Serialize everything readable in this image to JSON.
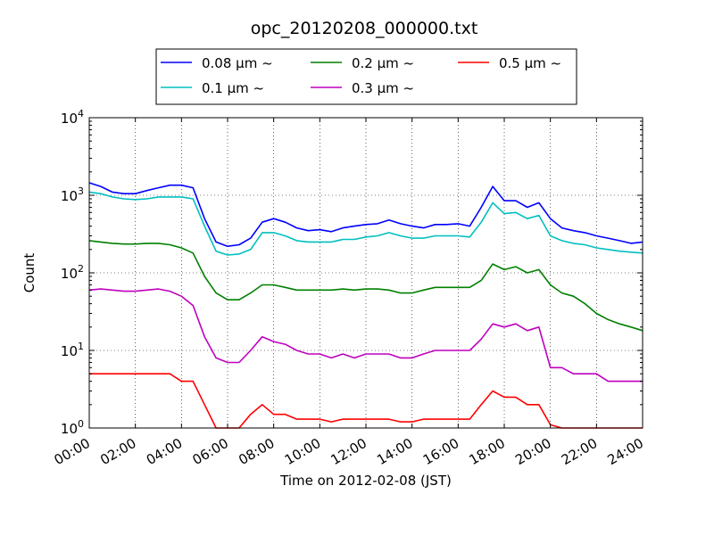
{
  "chart_data": {
    "type": "line",
    "title": "opc_20120208_000000.txt",
    "xlabel": "Time on 2012-02-08 (JST)",
    "ylabel": "Count",
    "x_range": [
      "00:00",
      "24:00"
    ],
    "x_ticks": [
      "00:00",
      "02:00",
      "04:00",
      "06:00",
      "08:00",
      "10:00",
      "12:00",
      "14:00",
      "16:00",
      "18:00",
      "20:00",
      "22:00",
      "24:00"
    ],
    "y_scale": "log",
    "y_range": [
      1,
      10000
    ],
    "y_ticks": [
      {
        "base": "10",
        "exp": "0"
      },
      {
        "base": "10",
        "exp": "1"
      },
      {
        "base": "10",
        "exp": "2"
      },
      {
        "base": "10",
        "exp": "3"
      },
      {
        "base": "10",
        "exp": "4"
      }
    ],
    "grid": true,
    "legend_position": "top-center, above plot",
    "series": [
      {
        "name": "0.08 μm ~",
        "color": "#0000ff",
        "x": [
          0,
          0.5,
          1,
          1.5,
          2,
          2.5,
          3,
          3.5,
          4,
          4.5,
          5,
          5.5,
          6,
          6.5,
          7,
          7.5,
          8,
          8.5,
          9,
          9.5,
          10,
          10.5,
          11,
          11.5,
          12,
          12.5,
          13,
          13.5,
          14,
          14.5,
          15,
          15.5,
          16,
          16.5,
          17,
          17.5,
          18,
          18.5,
          19,
          19.5,
          20,
          20.5,
          21,
          21.5,
          22,
          22.5,
          23,
          23.5,
          24
        ],
        "values": [
          1450,
          1300,
          1100,
          1050,
          1050,
          1150,
          1250,
          1350,
          1350,
          1250,
          500,
          250,
          220,
          230,
          280,
          450,
          500,
          450,
          380,
          350,
          360,
          340,
          380,
          400,
          420,
          430,
          480,
          430,
          400,
          380,
          420,
          420,
          430,
          400,
          700,
          1300,
          850,
          850,
          700,
          800,
          500,
          380,
          350,
          330,
          300,
          280,
          260,
          240,
          250
        ]
      },
      {
        "name": "0.1 μm ~",
        "color": "#00bfbf",
        "x": [
          0,
          0.5,
          1,
          1.5,
          2,
          2.5,
          3,
          3.5,
          4,
          4.5,
          5,
          5.5,
          6,
          6.5,
          7,
          7.5,
          8,
          8.5,
          9,
          9.5,
          10,
          10.5,
          11,
          11.5,
          12,
          12.5,
          13,
          13.5,
          14,
          14.5,
          15,
          15.5,
          16,
          16.5,
          17,
          17.5,
          18,
          18.5,
          19,
          19.5,
          20,
          20.5,
          21,
          21.5,
          22,
          22.5,
          23,
          23.5,
          24
        ],
        "values": [
          1100,
          1050,
          950,
          900,
          880,
          900,
          950,
          950,
          950,
          900,
          400,
          190,
          170,
          175,
          200,
          330,
          330,
          300,
          260,
          250,
          250,
          250,
          270,
          270,
          290,
          300,
          330,
          300,
          280,
          280,
          300,
          300,
          300,
          290,
          450,
          800,
          580,
          600,
          500,
          550,
          300,
          260,
          240,
          230,
          210,
          200,
          190,
          185,
          180
        ]
      },
      {
        "name": "0.2 μm ~",
        "color": "#008000",
        "x": [
          0,
          0.5,
          1,
          1.5,
          2,
          2.5,
          3,
          3.5,
          4,
          4.5,
          5,
          5.5,
          6,
          6.5,
          7,
          7.5,
          8,
          8.5,
          9,
          9.5,
          10,
          10.5,
          11,
          11.5,
          12,
          12.5,
          13,
          13.5,
          14,
          14.5,
          15,
          15.5,
          16,
          16.5,
          17,
          17.5,
          18,
          18.5,
          19,
          19.5,
          20,
          20.5,
          21,
          21.5,
          22,
          22.5,
          23,
          23.5,
          24
        ],
        "values": [
          260,
          250,
          240,
          235,
          235,
          240,
          240,
          230,
          210,
          180,
          90,
          55,
          45,
          45,
          55,
          70,
          70,
          65,
          60,
          60,
          60,
          60,
          62,
          60,
          62,
          62,
          60,
          55,
          55,
          60,
          65,
          65,
          65,
          65,
          80,
          130,
          110,
          120,
          100,
          110,
          70,
          55,
          50,
          40,
          30,
          25,
          22,
          20,
          18
        ]
      },
      {
        "name": "0.3 μm ~",
        "color": "#bf00bf",
        "x": [
          0,
          0.5,
          1,
          1.5,
          2,
          2.5,
          3,
          3.5,
          4,
          4.5,
          5,
          5.5,
          6,
          6.5,
          7,
          7.5,
          8,
          8.5,
          9,
          9.5,
          10,
          10.5,
          11,
          11.5,
          12,
          12.5,
          13,
          13.5,
          14,
          14.5,
          15,
          15.5,
          16,
          16.5,
          17,
          17.5,
          18,
          18.5,
          19,
          19.5,
          20,
          20.5,
          21,
          21.5,
          22,
          22.5,
          23,
          23.5,
          24
        ],
        "values": [
          60,
          62,
          60,
          58,
          58,
          60,
          62,
          58,
          50,
          38,
          15,
          8,
          7,
          7,
          10,
          15,
          13,
          12,
          10,
          9,
          9,
          8,
          9,
          8,
          9,
          9,
          9,
          8,
          8,
          9,
          10,
          10,
          10,
          10,
          14,
          22,
          20,
          22,
          18,
          20,
          6,
          6,
          5,
          5,
          5,
          4,
          4,
          4,
          4
        ]
      },
      {
        "name": "0.5 μm ~",
        "color": "#ff0000",
        "x": [
          0,
          0.5,
          1,
          1.5,
          2,
          2.5,
          3,
          3.5,
          4,
          4.5,
          5,
          5.5,
          6,
          6.5,
          7,
          7.5,
          8,
          8.5,
          9,
          9.5,
          10,
          10.5,
          11,
          11.5,
          12,
          12.5,
          13,
          13.5,
          14,
          14.5,
          15,
          15.5,
          16,
          16.5,
          17,
          17.5,
          18,
          18.5,
          19,
          19.5,
          20,
          20.5,
          21,
          21.5,
          22,
          22.5,
          23,
          23.5,
          24
        ],
        "values": [
          5,
          5,
          5,
          5,
          5,
          5,
          5,
          5,
          4,
          4,
          2,
          1,
          1,
          1,
          1.5,
          2,
          1.5,
          1.5,
          1.3,
          1.3,
          1.3,
          1.2,
          1.3,
          1.3,
          1.3,
          1.3,
          1.3,
          1.2,
          1.2,
          1.3,
          1.3,
          1.3,
          1.3,
          1.3,
          2,
          3,
          2.5,
          2.5,
          2,
          2,
          1.1,
          1,
          1,
          1,
          1,
          1,
          1,
          1,
          1
        ]
      }
    ]
  }
}
